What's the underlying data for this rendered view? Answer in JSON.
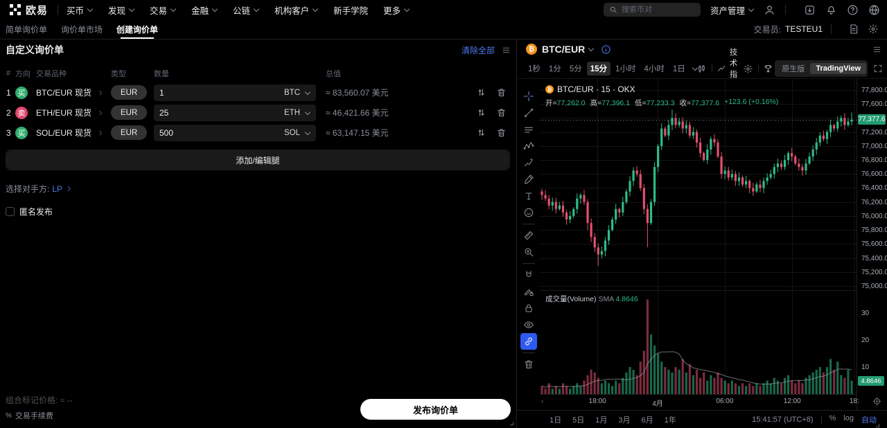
{
  "colors": {
    "up": "#2EBD85",
    "down": "#E2506F",
    "accent_blue": "#5179f3",
    "tag_green": "#239a6f",
    "badge_buy": "#2eac6d",
    "badge_sell": "#e0446c",
    "btc_orange": "#f7931a"
  },
  "topnav": {
    "brand": "欧易",
    "items": [
      {
        "label": "买币",
        "caret": true
      },
      {
        "label": "发现",
        "caret": true
      },
      {
        "label": "交易",
        "caret": true
      },
      {
        "label": "金融",
        "caret": true
      },
      {
        "label": "公链",
        "caret": true
      },
      {
        "label": "机构客户",
        "caret": true
      },
      {
        "label": "新手学院",
        "caret": false
      },
      {
        "label": "更多",
        "caret": true
      }
    ],
    "search_placeholder": "搜索币对",
    "assets_label": "资产管理",
    "right_icons": [
      "user",
      "download",
      "bell",
      "help",
      "globe"
    ]
  },
  "subnav": {
    "tabs": [
      {
        "label": "简单询价单",
        "active": false
      },
      {
        "label": "询价单市场",
        "active": false
      },
      {
        "label": "创建询价单",
        "active": true
      }
    ],
    "trader_label": "交易员:",
    "trader_value": "TESTEU1"
  },
  "rfq": {
    "title": "自定义询价单",
    "clear_all": "清除全部",
    "columns": [
      "#",
      "方向",
      "交易品种",
      "类型",
      "数量",
      "总值"
    ],
    "legs": [
      {
        "num": "1",
        "side": "买",
        "side_type": "buy",
        "pair": "BTC/EUR 现货",
        "type": "EUR",
        "amount": "1",
        "unit": "BTC",
        "value": "≈ 83,560.07 美元"
      },
      {
        "num": "2",
        "side": "卖",
        "side_type": "sell",
        "pair": "ETH/EUR 现货",
        "type": "EUR",
        "amount": "25",
        "unit": "ETH",
        "value": "≈ 46,421.66 美元"
      },
      {
        "num": "3",
        "side": "买",
        "side_type": "buy",
        "pair": "SOL/EUR 现货",
        "type": "EUR",
        "amount": "500",
        "unit": "SOL",
        "value": "≈ 63,147.15 美元"
      }
    ],
    "add_edit_label": "添加/编辑腿",
    "counterparty_label": "选择对手方:",
    "counterparty_value": "LP",
    "anonymous_label": "匿名发布",
    "mark_price_label": "组合标记价格:",
    "mark_price_value": "≈ --",
    "fee_label": "交易手续费",
    "submit_label": "发布询价单"
  },
  "chart": {
    "symbol": "BTC/EUR",
    "intervals": [
      "1秒",
      "1分",
      "5分",
      "15分",
      "1小时",
      "4小时",
      "1日"
    ],
    "active_interval": "15分",
    "indicators_label": "技术指标",
    "version_toggle": [
      {
        "label": "原生版",
        "active": false
      },
      {
        "label": "TradingView",
        "active": true
      }
    ],
    "legend_title": "BTC/EUR · 15 · OKX",
    "ohlc_items": [
      {
        "k": "开",
        "v": "77,262.0"
      },
      {
        "k": "高",
        "v": "77,396.1"
      },
      {
        "k": "低",
        "v": "77,233.3"
      },
      {
        "k": "收",
        "v": "77,377.6"
      }
    ],
    "change": "+123.6 (+0.16%)",
    "volume_legend": "成交量(Volume)",
    "sma_label": "SMA",
    "sma_value": "4.8646",
    "price_axis": [
      "77,800.0",
      "77,600.0",
      "77,200.0",
      "77,000.0",
      "76,800.0",
      "76,600.0",
      "76,400.0",
      "76,200.0",
      "76,000.0",
      "75,800.0",
      "75,600.0",
      "75,400.0",
      "75,200.0",
      "75,000.0"
    ],
    "last_price_label": "77,377.6",
    "volume_axis": [
      30,
      20,
      10
    ],
    "volume_tag": "4.8646",
    "time_axis": [
      {
        "label": "18:00",
        "f": 0.182
      },
      {
        "label": "4月",
        "f": 0.372
      },
      {
        "label": "06:00",
        "f": 0.584
      },
      {
        "label": "12:00",
        "f": 0.797
      },
      {
        "label": "18:",
        "f": 0.993
      }
    ],
    "ranges": [
      "1日",
      "5日",
      "1月",
      "3月",
      "6月",
      "1年"
    ],
    "clock": "15:41:57 (UTC+8)",
    "scale_buttons": [
      {
        "label": "%",
        "active": false
      },
      {
        "label": "log",
        "active": false
      },
      {
        "label": "自动",
        "active": true
      }
    ],
    "draw_tools": [
      "crosshair",
      "trend-line",
      "parallel-lines",
      "xabcd-pattern",
      "forecast",
      "brush",
      "text",
      "emoji",
      "divider",
      "ruler",
      "zoom-in",
      "divider",
      "magnet",
      "draw-lock",
      "lock",
      "eye",
      "link",
      "divider",
      "trash"
    ],
    "active_draw_tool": "link"
  },
  "chart_data": {
    "type": "candlestick",
    "title": "BTC/EUR · 15 · OKX",
    "interval": "15分",
    "current_ohlc": {
      "open": 77262.0,
      "high": 77396.1,
      "low": 77233.3,
      "close": 77377.6,
      "change": "+123.6 (+0.16%)"
    },
    "last_price": 77377.6,
    "y_axis": {
      "min": 75000,
      "max": 77800,
      "step": 200
    },
    "volume_axis_max": 40,
    "volume_sma": 4.8646,
    "first_open": 76350,
    "closes": [
      76300,
      76250,
      76150,
      76200,
      76100,
      76150,
      76050,
      75950,
      76000,
      76100,
      76250,
      76300,
      76200,
      75900,
      75700,
      75550,
      75450,
      75500,
      75650,
      75800,
      75950,
      76100,
      76050,
      76200,
      76350,
      76500,
      76650,
      76600,
      76400,
      76100,
      75900,
      76200,
      76700,
      77000,
      77250,
      77150,
      77300,
      77400,
      77300,
      77350,
      77250,
      77300,
      77150,
      77200,
      77050,
      76900,
      76800,
      76950,
      77100,
      77050,
      76850,
      76600,
      76650,
      76550,
      76600,
      76500,
      76550,
      76450,
      76500,
      76400,
      76350,
      76450,
      76400,
      76500,
      76550,
      76600,
      76700,
      76750,
      76700,
      76800,
      76900,
      76850,
      76750,
      76700,
      76650,
      76750,
      76850,
      76950,
      77050,
      77150,
      77100,
      77200,
      77300,
      77250,
      77350,
      77400,
      77300,
      77350,
      77377.6
    ],
    "volumes": [
      3,
      2,
      4,
      2,
      3,
      2,
      4,
      3,
      2,
      3,
      4,
      3,
      5,
      7,
      9,
      8,
      6,
      4,
      5,
      4,
      3,
      5,
      4,
      6,
      8,
      10,
      9,
      7,
      12,
      16,
      35,
      22,
      18,
      15,
      12,
      10,
      9,
      8,
      10,
      9,
      13,
      8,
      11,
      7,
      9,
      6,
      8,
      5,
      7,
      6,
      8,
      6,
      5,
      4,
      5,
      4,
      3,
      4,
      3,
      4,
      3,
      4,
      3,
      4,
      5,
      4,
      6,
      5,
      4,
      6,
      7,
      5,
      4,
      5,
      4,
      6,
      7,
      8,
      9,
      10,
      8,
      10,
      13,
      9,
      12,
      7,
      6,
      9,
      5
    ]
  }
}
